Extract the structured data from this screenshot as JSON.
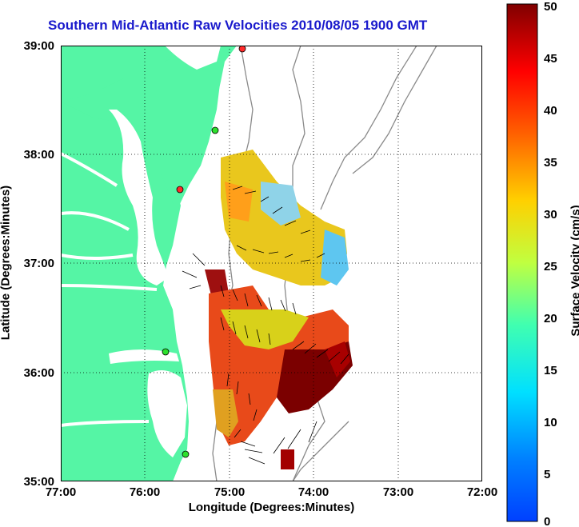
{
  "title": "Southern Mid-Atlantic Raw Velocities 2010/08/05 1900 GMT",
  "xlabel": "Longitude (Degrees:Minutes)",
  "ylabel": "Latitude (Degrees:Minutes)",
  "colorbar": {
    "label": "Surface Velocity (cm/s)",
    "ticks": [
      "0",
      "5",
      "10",
      "15",
      "20",
      "25",
      "30",
      "35",
      "40",
      "45",
      "50"
    ],
    "min": 0,
    "max": 50
  },
  "x_ticks": [
    "77:00",
    "76:00",
    "75:00",
    "74:00",
    "73:00",
    "72:00"
  ],
  "y_ticks": [
    "39:00",
    "38:00",
    "37:00",
    "36:00",
    "35:00"
  ],
  "map": {
    "lon_range": [
      -77,
      -72
    ],
    "lat_range": [
      35,
      39
    ],
    "land_color": "#55f5a5",
    "grid": "dotted",
    "vector_color": "#000000"
  }
}
